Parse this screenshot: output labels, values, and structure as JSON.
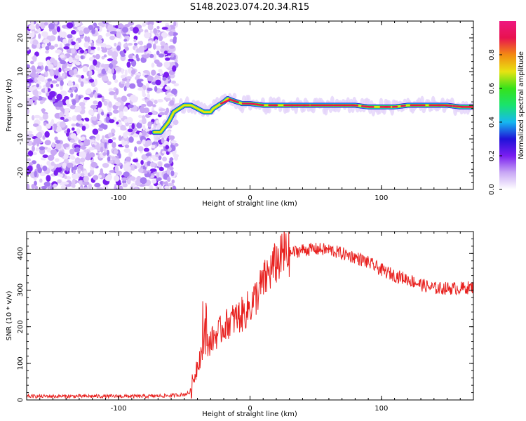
{
  "page_title": "S148.2023.074.20.34.R15",
  "colors": {
    "snr_line": "#e8201e",
    "frame": "#000000",
    "colormap": [
      "#ffffff",
      "#c9a8f5",
      "#7a1ef0",
      "#1f12d8",
      "#16b8f0",
      "#19e36e",
      "#36e21a",
      "#e8e312",
      "#f38a12",
      "#e8124f",
      "#ee1880"
    ]
  },
  "chart_data": [
    {
      "type": "heatmap",
      "xlabel": "Height of straight line (km)",
      "ylabel": "Frequency (Hz)",
      "xlim": [
        -170,
        170
      ],
      "ylim": [
        -25,
        25
      ],
      "x_ticks": [
        -100,
        0,
        100
      ],
      "y_ticks": [
        -20,
        -10,
        0,
        10,
        20
      ],
      "colorbar": {
        "label": "Normalized spectral amplitude",
        "range": [
          0,
          1
        ],
        "ticks": [
          0.0,
          0.2,
          0.4,
          0.6,
          0.8
        ]
      },
      "noise_region_x": [
        -170,
        -60
      ],
      "ridge": {
        "x": [
          -73,
          -68,
          -62,
          -58,
          -54,
          -50,
          -45,
          -40,
          -35,
          -30,
          -28,
          -24,
          -20,
          -17,
          -14,
          -10,
          -6,
          -3,
          0,
          10,
          20,
          30,
          40,
          50,
          60,
          70,
          80,
          90,
          100,
          110,
          120,
          130,
          140,
          150,
          160,
          170
        ],
        "y": [
          -8,
          -8,
          -5,
          -2,
          -1,
          0,
          0,
          -1,
          -2,
          -2,
          -1,
          0,
          1,
          2,
          1.5,
          1,
          0.5,
          0.5,
          0.5,
          0,
          0,
          0,
          0,
          0,
          0,
          0,
          0,
          -0.5,
          -0.5,
          -0.5,
          0,
          0,
          0,
          0,
          -0.5,
          -0.5
        ]
      }
    },
    {
      "type": "line",
      "xlabel": "Height of straight line (km)",
      "ylabel": "SNR (10 * v/v)",
      "xlim": [
        -170,
        170
      ],
      "ylim": [
        0,
        460
      ],
      "x_ticks": [
        -100,
        0,
        100
      ],
      "y_ticks": [
        0,
        100,
        200,
        300,
        400
      ],
      "series": [
        {
          "x": [
            -170,
            -140,
            -110,
            -80,
            -60,
            -50,
            -46,
            -44,
            -42,
            -40,
            -38,
            -36,
            -34,
            -30,
            -25,
            -20,
            -15,
            -10,
            -5,
            0,
            5,
            10,
            15,
            20,
            25,
            30,
            40,
            50,
            60,
            70,
            80,
            90,
            100,
            110,
            120,
            130,
            140,
            150,
            160,
            170
          ],
          "values": [
            10,
            10,
            10,
            10,
            12,
            15,
            20,
            40,
            70,
            100,
            120,
            140,
            145,
            160,
            180,
            200,
            215,
            225,
            235,
            255,
            285,
            320,
            350,
            375,
            395,
            400,
            410,
            412,
            410,
            400,
            390,
            375,
            355,
            340,
            330,
            315,
            305,
            305,
            305,
            308
          ]
        }
      ]
    }
  ]
}
